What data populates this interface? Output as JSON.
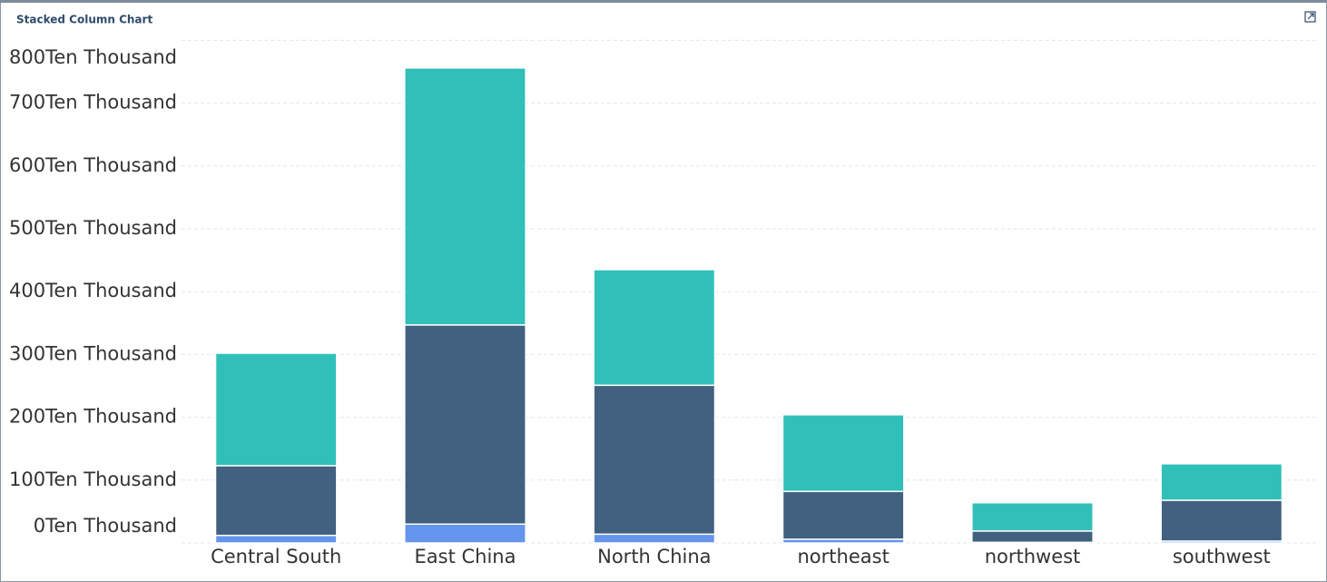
{
  "chart_data": {
    "type": "stacked-bar",
    "title": "Stacked Column Chart",
    "categories": [
      "Central South",
      "East China",
      "North China",
      "northeast",
      "northwest",
      "southwest"
    ],
    "series": [
      {
        "color": "#6495ed",
        "values": [
          12,
          30,
          14,
          6,
          1,
          3
        ]
      },
      {
        "color": "#42607f",
        "values": [
          111,
          317,
          237,
          76,
          18,
          65
        ]
      },
      {
        "color": "#30c0b9",
        "values": [
          179,
          409,
          184,
          122,
          45,
          58
        ]
      }
    ],
    "ylim": [
      0,
      800
    ],
    "yticks": [
      {
        "value": 0,
        "label": "0Ten Thousand"
      },
      {
        "value": 100,
        "label": "100Ten Thousand"
      },
      {
        "value": 200,
        "label": "200Ten Thousand"
      },
      {
        "value": 300,
        "label": "300Ten Thousand"
      },
      {
        "value": 400,
        "label": "400Ten Thousand"
      },
      {
        "value": 500,
        "label": "500Ten Thousand"
      },
      {
        "value": 600,
        "label": "600Ten Thousand"
      },
      {
        "value": 700,
        "label": "700Ten Thousand"
      },
      {
        "value": 800,
        "label": "800Ten Thousand"
      }
    ],
    "grid": true
  }
}
